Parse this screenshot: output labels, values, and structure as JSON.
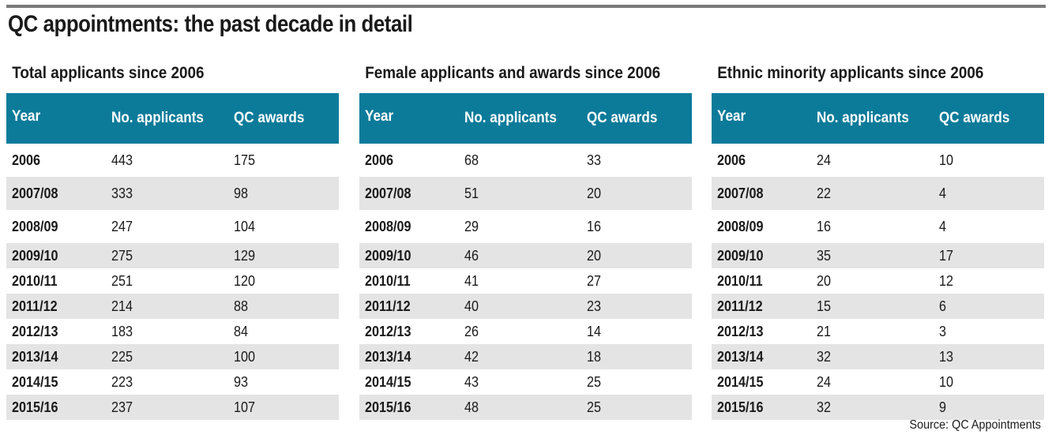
{
  "title": "QC appointments: the past decade in detail",
  "source": "Source: QC Appointments",
  "colors": {
    "header_bg": "#0c7b9a",
    "stripe": "#e4e4e4",
    "rule": "#7a7a7a"
  },
  "tables": [
    {
      "title": "Total applicants since 2006",
      "headers": [
        "Year",
        "No. applicants",
        "QC awards"
      ],
      "rows": [
        [
          "2006",
          "443",
          "175"
        ],
        [
          "2007/08",
          "333",
          "98"
        ],
        [
          "2008/09",
          "247",
          "104"
        ],
        [
          "2009/10",
          "275",
          "129"
        ],
        [
          "2010/11",
          "251",
          "120"
        ],
        [
          "2011/12",
          "214",
          "88"
        ],
        [
          "2012/13",
          "183",
          "84"
        ],
        [
          "2013/14",
          "225",
          "100"
        ],
        [
          "2014/15",
          "223",
          "93"
        ],
        [
          "2015/16",
          "237",
          "107"
        ]
      ]
    },
    {
      "title": "Female applicants and awards since 2006",
      "headers": [
        "Year",
        "No. applicants",
        "QC awards"
      ],
      "rows": [
        [
          "2006",
          "68",
          "33"
        ],
        [
          "2007/08",
          "51",
          "20"
        ],
        [
          "2008/09",
          "29",
          "16"
        ],
        [
          "2009/10",
          "46",
          "20"
        ],
        [
          "2010/11",
          "41",
          "27"
        ],
        [
          "2011/12",
          "40",
          "23"
        ],
        [
          "2012/13",
          "26",
          "14"
        ],
        [
          "2013/14",
          "42",
          "18"
        ],
        [
          "2014/15",
          "43",
          "25"
        ],
        [
          "2015/16",
          "48",
          "25"
        ]
      ]
    },
    {
      "title": "Ethnic minority applicants since 2006",
      "headers": [
        "Year",
        "No. applicants",
        "QC awards"
      ],
      "rows": [
        [
          "2006",
          "24",
          "10"
        ],
        [
          "2007/08",
          "22",
          "4"
        ],
        [
          "2008/09",
          "16",
          "4"
        ],
        [
          "2009/10",
          "35",
          "17"
        ],
        [
          "2010/11",
          "20",
          "12"
        ],
        [
          "2011/12",
          "15",
          "6"
        ],
        [
          "2012/13",
          "21",
          "3"
        ],
        [
          "2013/14",
          "32",
          "13"
        ],
        [
          "2014/15",
          "24",
          "10"
        ],
        [
          "2015/16",
          "32",
          "9"
        ]
      ]
    }
  ]
}
